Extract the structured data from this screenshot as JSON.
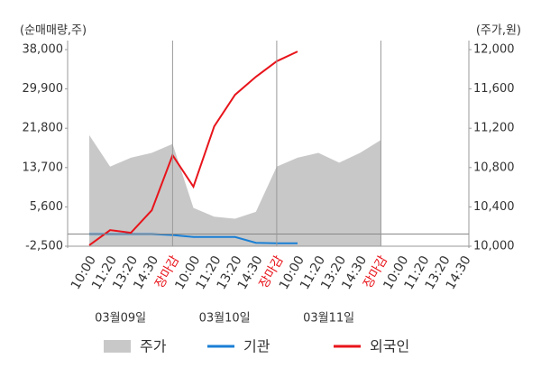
{
  "chart_data": {
    "type": "line",
    "y_label": "(순매매량,주)",
    "y2_label": "(주가,원)",
    "categories": [
      "10:00",
      "11:20",
      "13:20",
      "14:30",
      "장마감",
      "10:00",
      "11:20",
      "13:20",
      "14:30",
      "장마감",
      "10:00",
      "11:20",
      "13:20",
      "14:30",
      "장마감",
      "10:00",
      "11:20",
      "13:20",
      "14:30"
    ],
    "close_label": "장마감",
    "date_labels": [
      "03월09일",
      "03월10일",
      "03월11일"
    ],
    "ylim": [
      -2500,
      38000
    ],
    "yticks": [
      {
        "value": -2500,
        "label": "-2,500"
      },
      {
        "value": 5600,
        "label": "5,600"
      },
      {
        "value": 13700,
        "label": "13,700"
      },
      {
        "value": 21800,
        "label": "21,800"
      },
      {
        "value": 29900,
        "label": "29,900"
      },
      {
        "value": 38000,
        "label": "38,000"
      }
    ],
    "y2lim": [
      10000,
      12000
    ],
    "y2ticks": [
      {
        "value": 10000,
        "label": "10,000"
      },
      {
        "value": 10400,
        "label": "10,400"
      },
      {
        "value": 10800,
        "label": "10,800"
      },
      {
        "value": 11200,
        "label": "11,200"
      },
      {
        "value": 11600,
        "label": "11,600"
      },
      {
        "value": 12000,
        "label": "12,000"
      }
    ],
    "series": [
      {
        "name": "주가",
        "type": "area",
        "axis": "y2",
        "color": "#c8c8c8",
        "values": [
          11130,
          10810,
          10900,
          10950,
          11040,
          10390,
          10300,
          10280,
          10350,
          10810,
          10900,
          10950,
          10850,
          10950,
          11080,
          null,
          null,
          null,
          null
        ]
      },
      {
        "name": "기관",
        "type": "line",
        "color": "#1a7fd4",
        "values": [
          0,
          0,
          0,
          0,
          -200,
          -600,
          -600,
          -600,
          -1800,
          -1900,
          -1900,
          null,
          null,
          null,
          null,
          null,
          null,
          null,
          null
        ]
      },
      {
        "name": "외국인",
        "type": "line",
        "color": "#e8141b",
        "values": [
          -2300,
          820,
          270,
          4900,
          16250,
          9750,
          22200,
          28700,
          32400,
          35600,
          37600,
          null,
          null,
          null,
          null,
          null,
          null,
          null,
          null
        ]
      }
    ]
  }
}
